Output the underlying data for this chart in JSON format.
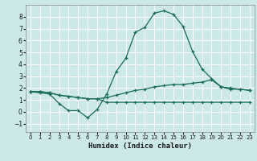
{
  "xlabel": "Humidex (Indice chaleur)",
  "background_color": "#cce8e8",
  "grid_color": "#ffffff",
  "line_color": "#1a6b5a",
  "x_ticks": [
    0,
    1,
    2,
    3,
    4,
    5,
    6,
    7,
    8,
    9,
    10,
    11,
    12,
    13,
    14,
    15,
    16,
    17,
    18,
    19,
    20,
    21,
    22,
    23
  ],
  "y_ticks": [
    -1,
    0,
    1,
    2,
    3,
    4,
    5,
    6,
    7,
    8
  ],
  "xlim": [
    -0.5,
    23.5
  ],
  "ylim": [
    -1.7,
    9.0
  ],
  "line1_x": [
    0,
    1,
    2,
    3,
    4,
    5,
    6,
    7,
    8,
    9,
    10,
    11,
    12,
    13,
    14,
    15,
    16,
    17,
    18,
    19,
    20,
    21,
    22,
    23
  ],
  "line1_y": [
    1.7,
    1.6,
    1.5,
    0.7,
    0.1,
    0.1,
    -0.5,
    0.2,
    1.5,
    3.4,
    4.5,
    6.7,
    7.1,
    8.3,
    8.5,
    8.2,
    7.2,
    5.1,
    3.6,
    2.8,
    2.1,
    1.9,
    1.9,
    1.8
  ],
  "line2_x": [
    0,
    1,
    2,
    3,
    4,
    5,
    6,
    7,
    8,
    9,
    10,
    11,
    12,
    13,
    14,
    15,
    16,
    17,
    18,
    19,
    20,
    21,
    22,
    23
  ],
  "line2_y": [
    1.7,
    1.7,
    1.6,
    1.4,
    1.3,
    1.2,
    1.1,
    1.1,
    1.2,
    1.4,
    1.6,
    1.8,
    1.9,
    2.1,
    2.2,
    2.3,
    2.3,
    2.4,
    2.5,
    2.7,
    2.1,
    2.0,
    1.9,
    1.8
  ],
  "line3_x": [
    0,
    1,
    2,
    3,
    4,
    5,
    6,
    7,
    8,
    9,
    10,
    11,
    12,
    13,
    14,
    15,
    16,
    17,
    18,
    19,
    20,
    21,
    22,
    23
  ],
  "line3_y": [
    1.7,
    1.7,
    1.6,
    1.4,
    1.3,
    1.2,
    1.1,
    1.1,
    0.8,
    0.8,
    0.8,
    0.8,
    0.8,
    0.8,
    0.8,
    0.8,
    0.8,
    0.8,
    0.8,
    0.8,
    0.8,
    0.8,
    0.8,
    0.8
  ]
}
